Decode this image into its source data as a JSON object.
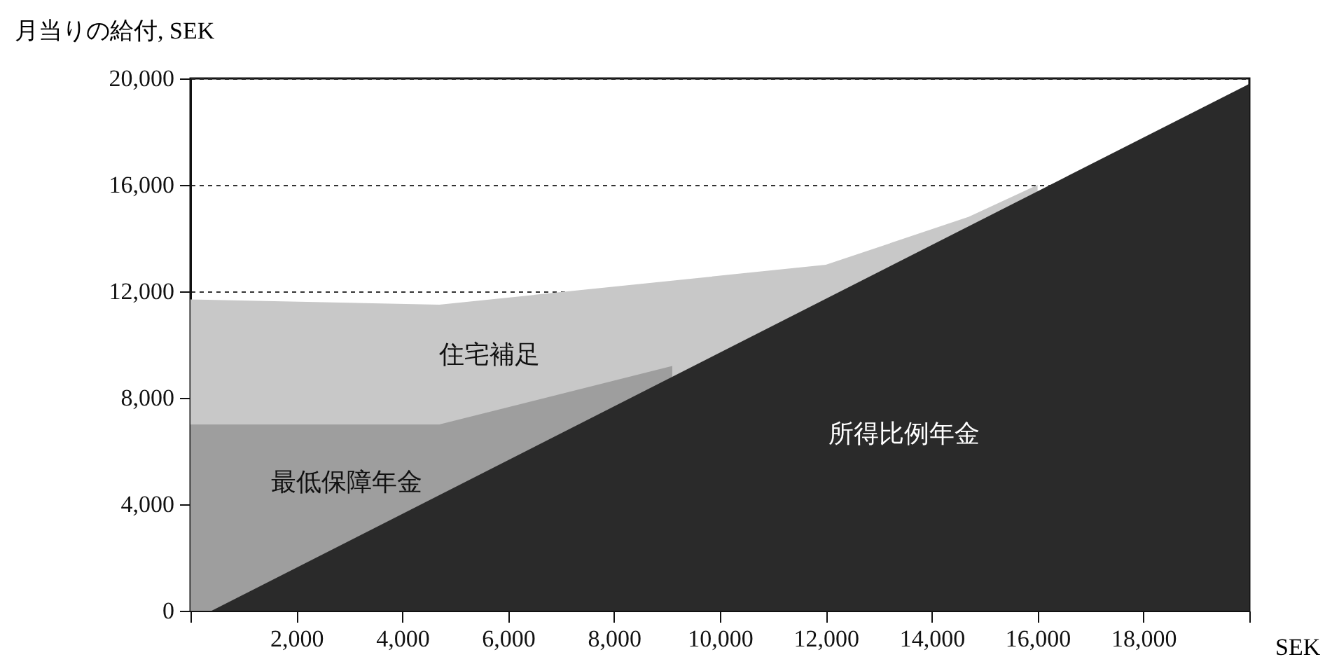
{
  "chart_data": {
    "type": "area",
    "ylabel": "月当りの給付, SEK",
    "xlabel": "SEK",
    "xlim": [
      0,
      20000
    ],
    "ylim": [
      0,
      20000
    ],
    "xticks": [
      {
        "value": 0,
        "label": null
      },
      {
        "value": 2000,
        "label": "2,000"
      },
      {
        "value": 4000,
        "label": "4,000"
      },
      {
        "value": 6000,
        "label": "6,000"
      },
      {
        "value": 8000,
        "label": "8,000"
      },
      {
        "value": 10000,
        "label": "10,000"
      },
      {
        "value": 12000,
        "label": "12,000"
      },
      {
        "value": 14000,
        "label": "14,000"
      },
      {
        "value": 16000,
        "label": "16,000"
      },
      {
        "value": 18000,
        "label": "18,000"
      },
      {
        "value": 20000,
        "label": null
      }
    ],
    "yticks": [
      0,
      {
        "value": 4000,
        "label": "4,000"
      },
      {
        "value": 8000,
        "label": "8,000"
      },
      {
        "value": 12000,
        "label": "12,000"
      },
      {
        "value": 16000,
        "label": "16,000"
      },
      {
        "value": 20000,
        "label": "20,000"
      }
    ],
    "grid": "y",
    "line_style": "dashed",
    "series": [
      {
        "name": "住宅補足",
        "color": "#c8c8c8",
        "x": [
          0,
          4700,
          12000,
          14700,
          16000
        ],
        "values": [
          11700,
          11500,
          13000,
          14800,
          16000
        ]
      },
      {
        "name": "最低保障年金",
        "color": "#9e9e9e",
        "x": [
          0,
          4700,
          9100
        ],
        "values": [
          7000,
          7000,
          9200
        ]
      },
      {
        "name": "所得比例年金",
        "color": "#2a2a2a",
        "x": [
          400,
          20000
        ],
        "values": [
          0,
          19800
        ]
      }
    ]
  }
}
